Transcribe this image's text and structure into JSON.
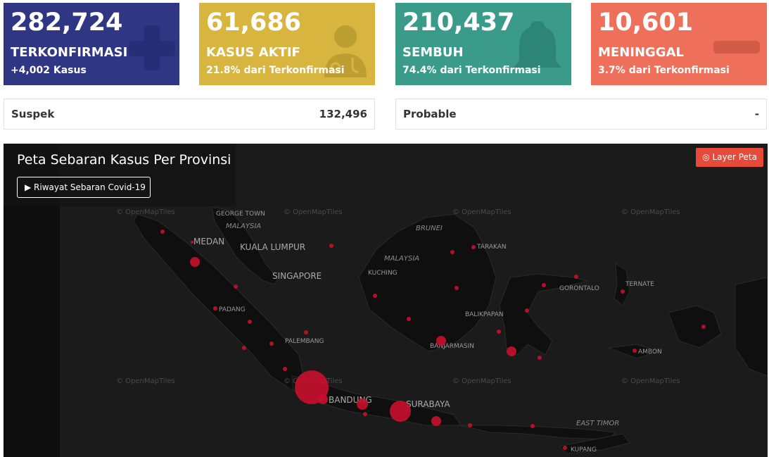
{
  "cards": [
    {
      "number": "282,724",
      "label": "TERKONFIRMASI",
      "sub": "+4,002 Kasus",
      "color": "#2f3683",
      "icon": "plus-icon"
    },
    {
      "number": "61,686",
      "label": "KASUS AKTIF",
      "sub": "21.8% dari Terkonfirmasi",
      "color": "#d8b53e",
      "icon": "doctor-icon"
    },
    {
      "number": "210,437",
      "label": "SEMBUH",
      "sub": "74.4% dari Terkonfirmasi",
      "color": "#3a9b8b",
      "icon": "bell-icon"
    },
    {
      "number": "10,601",
      "label": "MENINGGAL",
      "sub": "3.7% dari Terkonfirmasi",
      "color": "#ef705a",
      "icon": "minus-icon"
    }
  ],
  "stats": {
    "suspek": {
      "label": "Suspek",
      "value": "132,496"
    },
    "probable": {
      "label": "Probable",
      "value": "-"
    }
  },
  "map": {
    "title": "Peta Sebaran Kasus Per Provinsi",
    "history_button": "▶ Riwayat Sebaran Covid-19",
    "layer_button": "◎ Layer Peta",
    "attribution": "© OpenMapTiles",
    "cities": {
      "medan": "MEDAN",
      "kuala_lumpur": "KUALA LUMPUR",
      "singapore": "SINGAPORE",
      "george_town": "GEORGE TOWN",
      "padang": "PADANG",
      "palembang": "PALEMBANG",
      "bandung": "BANDUNG",
      "surabaya": "SURABAYA",
      "kuching": "KUCHING",
      "tarakan": "TARAKAN",
      "balikpapan": "BALIKPAPAN",
      "banjarmasin": "BANJARMASIN",
      "gorontalo": "GORONTALO",
      "ternate": "TERNATE",
      "ambon": "AMBON",
      "kupang": "KUPANG",
      "malaysia1": "MALAYSIA",
      "malaysia2": "MALAYSIA",
      "brunei": "BRUNEI",
      "east_timor": "EAST TIMOR"
    }
  }
}
